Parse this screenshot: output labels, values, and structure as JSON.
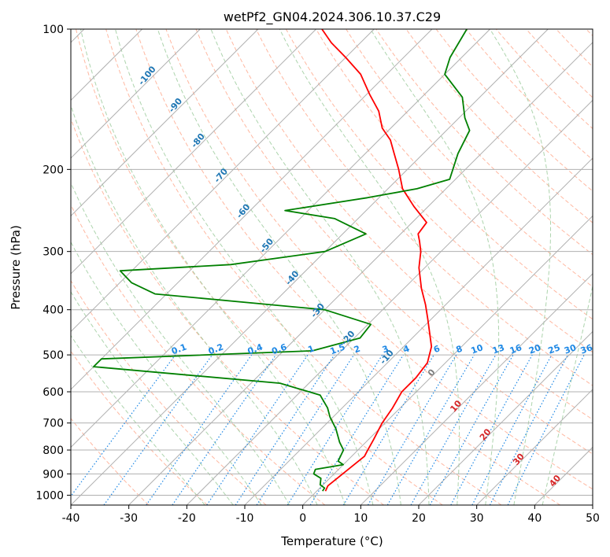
{
  "chart_data": {
    "type": "skew-t log-p",
    "title": "wetPf2_GN04.2024.306.10.37.C29",
    "xlabel": "Temperature (°C)",
    "ylabel": "Pressure (hPa)",
    "xlim": [
      -40,
      50
    ],
    "ylim": [
      1050,
      100
    ],
    "y_scale": "log",
    "x_ticks": [
      -40,
      -30,
      -20,
      -10,
      0,
      10,
      20,
      30,
      40,
      50
    ],
    "y_ticks": [
      1000,
      900,
      800,
      700,
      600,
      500,
      400,
      300,
      200,
      100
    ],
    "grid": true,
    "colors": {
      "temperature": "#ff0000",
      "dewpoint": "#008000",
      "isotherm": "#b0b0b0",
      "dry_adiabat": "#ffab91",
      "moist_adiabat": "#98c998",
      "mixing_ratio": "#1e88e5",
      "label_blue": "#1f77b4",
      "label_red": "#d62728",
      "label_gray": "#7f7f7f"
    },
    "series": [
      {
        "role": "temperature",
        "points": [
          [
            1.5,
            980
          ],
          [
            1.0,
            955
          ],
          [
            2.2,
            825
          ],
          [
            1.8,
            805
          ],
          [
            0.9,
            760
          ],
          [
            -0.5,
            700
          ],
          [
            -1.3,
            650
          ],
          [
            -2.5,
            600
          ],
          [
            -2.5,
            560
          ],
          [
            -3.1,
            520
          ],
          [
            -5.2,
            480
          ],
          [
            -10.5,
            420
          ],
          [
            -13.5,
            390
          ],
          [
            -17.0,
            360
          ],
          [
            -21.0,
            325
          ],
          [
            -23.5,
            300
          ],
          [
            -25.5,
            285
          ],
          [
            -27.0,
            275
          ],
          [
            -27.5,
            260
          ],
          [
            -32.5,
            240
          ],
          [
            -37.5,
            220
          ],
          [
            -41.5,
            200
          ],
          [
            -45.0,
            185
          ],
          [
            -48.0,
            173
          ],
          [
            -51.5,
            163
          ],
          [
            -55.0,
            150
          ],
          [
            -59.5,
            138
          ],
          [
            -64.5,
            125
          ],
          [
            -70.0,
            115
          ],
          [
            -75.0,
            107
          ],
          [
            -79.0,
            100
          ]
        ]
      },
      {
        "role": "dewpoint",
        "points": [
          [
            1.0,
            980
          ],
          [
            0.8,
            965
          ],
          [
            -0.5,
            950
          ],
          [
            -1.5,
            920
          ],
          [
            -3.5,
            900
          ],
          [
            -4.0,
            880
          ],
          [
            0.0,
            860
          ],
          [
            -1.5,
            845
          ],
          [
            -2.5,
            800
          ],
          [
            -4.5,
            770
          ],
          [
            -7.5,
            720
          ],
          [
            -10.5,
            680
          ],
          [
            -12.5,
            650
          ],
          [
            -16.0,
            610
          ],
          [
            -25.0,
            575
          ],
          [
            -48.0,
            545
          ],
          [
            -60.0,
            530
          ],
          [
            -60.0,
            510
          ],
          [
            -25.0,
            490
          ],
          [
            -19.0,
            460
          ],
          [
            -19.5,
            430
          ],
          [
            -30.0,
            400
          ],
          [
            -62.0,
            370
          ],
          [
            -68.0,
            350
          ],
          [
            -72.0,
            330
          ],
          [
            -54.0,
            320
          ],
          [
            -40.0,
            300
          ],
          [
            -36.0,
            275
          ],
          [
            -44.0,
            255
          ],
          [
            -54.0,
            245
          ],
          [
            -42.0,
            230
          ],
          [
            -35.0,
            220
          ],
          [
            -31.0,
            210
          ],
          [
            -34.0,
            185
          ],
          [
            -36.0,
            165
          ],
          [
            -39.0,
            155
          ],
          [
            -43.0,
            140
          ],
          [
            -50.0,
            125
          ],
          [
            -52.0,
            115
          ],
          [
            -54.0,
            100
          ]
        ]
      }
    ],
    "isotherm_labels": [
      "-100",
      "-90",
      "-80",
      "-70",
      "-60",
      "-50",
      "-40",
      "-30",
      "-20",
      "-10"
    ],
    "mixing_ratio_labels": [
      "0.1",
      "0.2",
      "0.4",
      "0.6",
      "1",
      "1.5",
      "2",
      "3",
      "4",
      "6",
      "8",
      "10",
      "13",
      "16",
      "20",
      "25",
      "30",
      "36"
    ],
    "isotherm_labels_warm": [
      "0",
      "10",
      "20",
      "30",
      "40"
    ]
  }
}
